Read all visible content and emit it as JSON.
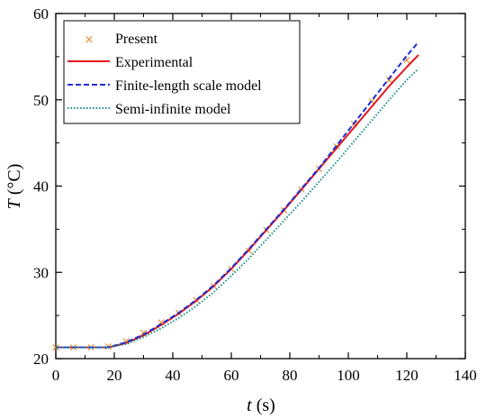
{
  "chart_data": {
    "type": "line",
    "title": "",
    "xlabel": {
      "var": "t",
      "unit": " (s)"
    },
    "ylabel": {
      "var": "T",
      "unit": " (°C)"
    },
    "xlim": [
      0,
      140
    ],
    "ylim": [
      20,
      60
    ],
    "xticks": [
      "0",
      "20",
      "40",
      "60",
      "80",
      "100",
      "120",
      "140"
    ],
    "yticks": [
      "20",
      "30",
      "40",
      "50",
      "60"
    ],
    "grid": false,
    "legend_position": "top-left",
    "series": [
      {
        "name": "Present",
        "style": "markers-x",
        "color": "#e08a2a",
        "x": [
          0,
          6,
          12,
          18,
          24,
          30,
          36,
          42,
          48,
          54,
          60,
          66,
          72,
          78,
          84,
          90,
          96,
          102,
          108,
          114,
          120
        ],
        "y": [
          21.3,
          21.3,
          21.3,
          21.4,
          22.0,
          23.0,
          24.2,
          25.3,
          26.8,
          28.4,
          30.4,
          32.5,
          34.9,
          37.2,
          39.6,
          42.0,
          44.6,
          47.2,
          49.8,
          52.3,
          54.6
        ]
      },
      {
        "name": "Experimental",
        "style": "solid",
        "color": "#e3161b",
        "x": [
          0,
          18,
          24,
          30,
          36,
          42,
          48,
          54,
          60,
          66,
          72,
          78,
          84,
          90,
          96,
          102,
          108,
          114,
          120,
          124
        ],
        "y": [
          21.3,
          21.3,
          21.8,
          22.7,
          23.9,
          25.2,
          26.7,
          28.4,
          30.4,
          32.6,
          34.9,
          37.2,
          39.6,
          42.0,
          44.4,
          46.8,
          49.2,
          51.6,
          53.8,
          55.2
        ]
      },
      {
        "name": "Finite-length scale model",
        "style": "dashed",
        "color": "#1f2fd4",
        "x": [
          0,
          18,
          24,
          30,
          36,
          42,
          48,
          54,
          60,
          66,
          72,
          78,
          84,
          90,
          96,
          102,
          108,
          114,
          120,
          124
        ],
        "y": [
          21.3,
          21.3,
          21.9,
          22.8,
          24.0,
          25.3,
          26.8,
          28.5,
          30.5,
          32.7,
          35.0,
          37.3,
          39.7,
          42.1,
          44.7,
          47.3,
          49.9,
          52.5,
          55.1,
          56.7
        ]
      },
      {
        "name": "Semi-infinite model",
        "style": "dotted",
        "color": "#1a8c8c",
        "x": [
          0,
          18,
          24,
          30,
          36,
          42,
          48,
          54,
          60,
          66,
          72,
          78,
          84,
          90,
          96,
          102,
          108,
          114,
          120,
          124
        ],
        "y": [
          21.3,
          21.3,
          21.7,
          22.5,
          23.5,
          24.7,
          26.1,
          27.7,
          29.6,
          31.6,
          33.8,
          36.0,
          38.2,
          40.5,
          42.8,
          45.2,
          47.6,
          50.0,
          52.3,
          53.6
        ]
      }
    ]
  }
}
